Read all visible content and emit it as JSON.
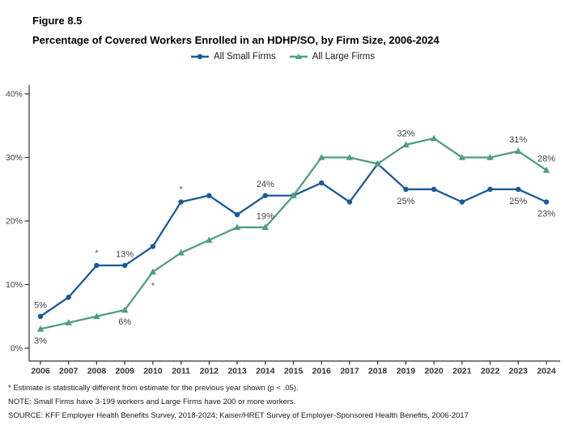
{
  "header": {
    "figure_label": "Figure 8.5",
    "title": "Percentage of Covered Workers Enrolled in an HDHP/SO, by Firm Size, 2006-2024"
  },
  "legend": [
    {
      "label": "All Small Firms",
      "color": "#1A5A96",
      "marker": "circle"
    },
    {
      "label": "All Large Firms",
      "color": "#4F9E83",
      "marker": "triangle"
    }
  ],
  "chart_data": {
    "type": "line",
    "title": "Percentage of Covered Workers Enrolled in an HDHP/SO, by Firm Size, 2006-2024",
    "x": [
      2006,
      2007,
      2008,
      2009,
      2010,
      2011,
      2012,
      2013,
      2014,
      2015,
      2016,
      2017,
      2018,
      2019,
      2020,
      2021,
      2022,
      2023,
      2024
    ],
    "xlabel": "",
    "ylabel": "",
    "ylim": [
      0,
      40
    ],
    "yticks": [
      0,
      10,
      20,
      30,
      40
    ],
    "ytick_labels": [
      "0%",
      "10%",
      "20%",
      "30%",
      "40%"
    ],
    "grid": false,
    "legend_position": "top",
    "series": [
      {
        "name": "All Small Firms",
        "color": "#1A5A96",
        "marker": "circle",
        "values": [
          5,
          8,
          13,
          13,
          16,
          23,
          24,
          21,
          24,
          24,
          26,
          23,
          29,
          25,
          25,
          23,
          25,
          25,
          23
        ],
        "point_labels": [
          {
            "year": 2006,
            "text": "5%",
            "position": "above"
          },
          {
            "year": 2009,
            "text": "13%",
            "position": "above"
          },
          {
            "year": 2014,
            "text": "24%",
            "position": "above"
          },
          {
            "year": 2019,
            "text": "25%",
            "position": "below"
          },
          {
            "year": 2023,
            "text": "25%",
            "position": "below"
          },
          {
            "year": 2024,
            "text": "23%",
            "position": "below"
          }
        ],
        "significance_asterisks": [
          {
            "year": 2008,
            "position": "above"
          },
          {
            "year": 2011,
            "position": "above"
          }
        ]
      },
      {
        "name": "All Large Firms",
        "color": "#4F9E83",
        "marker": "triangle",
        "values": [
          3,
          4,
          5,
          6,
          12,
          15,
          17,
          19,
          19,
          24,
          30,
          30,
          29,
          32,
          33,
          30,
          30,
          31,
          28
        ],
        "point_labels": [
          {
            "year": 2006,
            "text": "3%",
            "position": "below"
          },
          {
            "year": 2009,
            "text": "6%",
            "position": "below"
          },
          {
            "year": 2014,
            "text": "19%",
            "position": "above"
          },
          {
            "year": 2019,
            "text": "32%",
            "position": "above"
          },
          {
            "year": 2023,
            "text": "31%",
            "position": "above"
          },
          {
            "year": 2024,
            "text": "28%",
            "position": "above"
          }
        ],
        "significance_asterisks": [
          {
            "year": 2010,
            "position": "below"
          }
        ]
      }
    ]
  },
  "colors": {
    "axis": "#333333",
    "tick_label": "#404040",
    "data_label": "#404040",
    "asterisk": "#595959"
  },
  "footnotes": [
    "* Estimate is statistically different from estimate for the previous year shown (p < .05).",
    "NOTE: Small Firms have 3-199 workers and Large Firms have 200 or more workers.",
    "SOURCE: KFF Employer Health Benefits Survey, 2018-2024; Kaiser/HRET Survey of Employer-Sponsored Health Benefits, 2006-2017"
  ]
}
